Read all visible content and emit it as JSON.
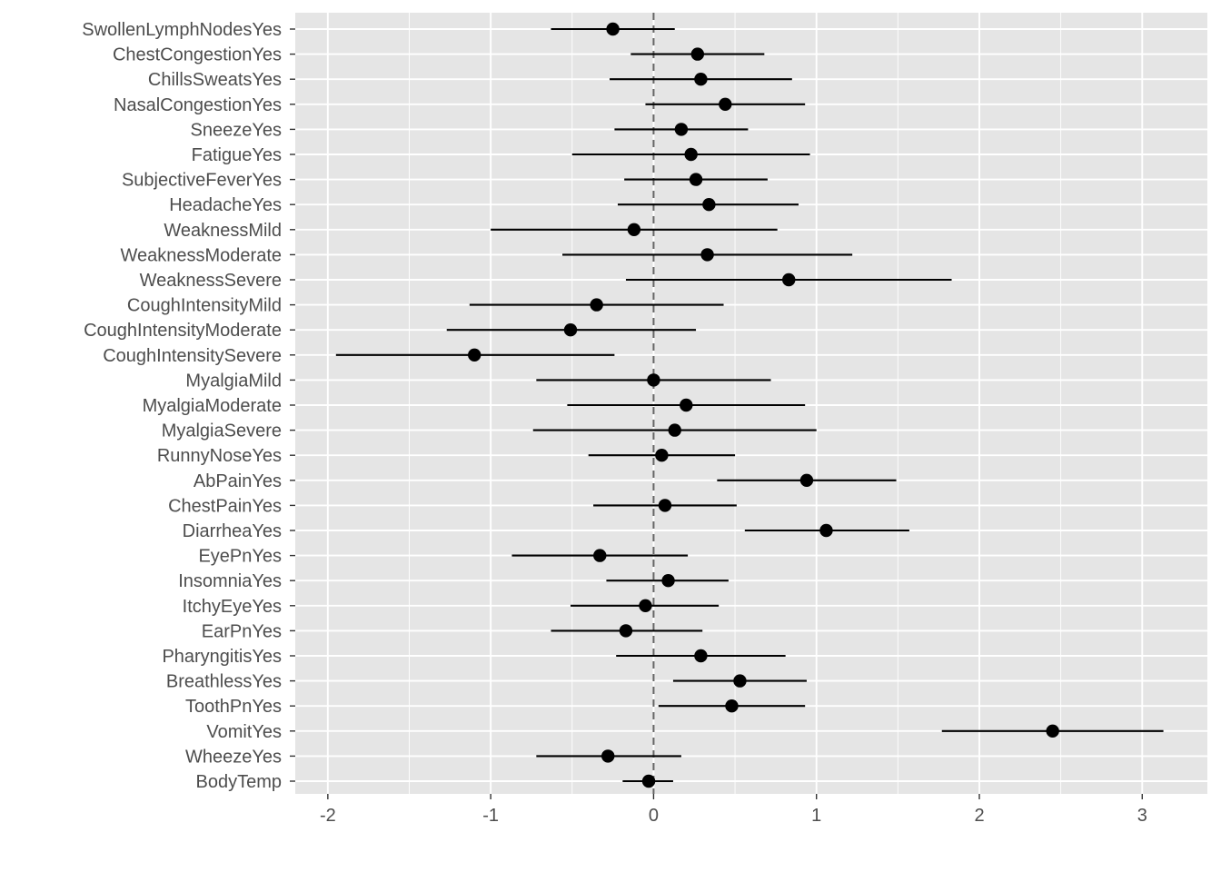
{
  "chart_data": {
    "type": "scatter",
    "subtype": "coefficient-plot-with-intervals",
    "title": "",
    "xlabel": "",
    "ylabel": "",
    "xlim": [
      -2.2,
      3.4
    ],
    "x_ticks": [
      -2,
      -1,
      0,
      1,
      2,
      3
    ],
    "x_tick_labels": [
      "-2",
      "-1",
      "0",
      "1",
      "2",
      "3"
    ],
    "reference_line_x": 0,
    "grid": true,
    "background": "#e5e5e5",
    "point_color": "#000000",
    "reference_line_color": "#666666",
    "terms": [
      {
        "term": "SwollenLymphNodesYes",
        "estimate": -0.25,
        "low": -0.63,
        "high": 0.13
      },
      {
        "term": "ChestCongestionYes",
        "estimate": 0.27,
        "low": -0.14,
        "high": 0.68
      },
      {
        "term": "ChillsSweatsYes",
        "estimate": 0.29,
        "low": -0.27,
        "high": 0.85
      },
      {
        "term": "NasalCongestionYes",
        "estimate": 0.44,
        "low": -0.05,
        "high": 0.93
      },
      {
        "term": "SneezeYes",
        "estimate": 0.17,
        "low": -0.24,
        "high": 0.58
      },
      {
        "term": "FatigueYes",
        "estimate": 0.23,
        "low": -0.5,
        "high": 0.96
      },
      {
        "term": "SubjectiveFeverYes",
        "estimate": 0.26,
        "low": -0.18,
        "high": 0.7
      },
      {
        "term": "HeadacheYes",
        "estimate": 0.34,
        "low": -0.22,
        "high": 0.89
      },
      {
        "term": "WeaknessMild",
        "estimate": -0.12,
        "low": -1.0,
        "high": 0.76
      },
      {
        "term": "WeaknessModerate",
        "estimate": 0.33,
        "low": -0.56,
        "high": 1.22
      },
      {
        "term": "WeaknessSevere",
        "estimate": 0.83,
        "low": -0.17,
        "high": 1.83
      },
      {
        "term": "CoughIntensityMild",
        "estimate": -0.35,
        "low": -1.13,
        "high": 0.43
      },
      {
        "term": "CoughIntensityModerate",
        "estimate": -0.51,
        "low": -1.27,
        "high": 0.26
      },
      {
        "term": "CoughIntensitySevere",
        "estimate": -1.1,
        "low": -1.95,
        "high": -0.24
      },
      {
        "term": "MyalgiaMild",
        "estimate": 0.0,
        "low": -0.72,
        "high": 0.72
      },
      {
        "term": "MyalgiaModerate",
        "estimate": 0.2,
        "low": -0.53,
        "high": 0.93
      },
      {
        "term": "MyalgiaSevere",
        "estimate": 0.13,
        "low": -0.74,
        "high": 1.0
      },
      {
        "term": "RunnyNoseYes",
        "estimate": 0.05,
        "low": -0.4,
        "high": 0.5
      },
      {
        "term": "AbPainYes",
        "estimate": 0.94,
        "low": 0.39,
        "high": 1.49
      },
      {
        "term": "ChestPainYes",
        "estimate": 0.07,
        "low": -0.37,
        "high": 0.51
      },
      {
        "term": "DiarrheaYes",
        "estimate": 1.06,
        "low": 0.56,
        "high": 1.57
      },
      {
        "term": "EyePnYes",
        "estimate": -0.33,
        "low": -0.87,
        "high": 0.21
      },
      {
        "term": "InsomniaYes",
        "estimate": 0.09,
        "low": -0.29,
        "high": 0.46
      },
      {
        "term": "ItchyEyeYes",
        "estimate": -0.05,
        "low": -0.51,
        "high": 0.4
      },
      {
        "term": "EarPnYes",
        "estimate": -0.17,
        "low": -0.63,
        "high": 0.3
      },
      {
        "term": "PharyngitisYes",
        "estimate": 0.29,
        "low": -0.23,
        "high": 0.81
      },
      {
        "term": "BreathlessYes",
        "estimate": 0.53,
        "low": 0.12,
        "high": 0.94
      },
      {
        "term": "ToothPnYes",
        "estimate": 0.48,
        "low": 0.03,
        "high": 0.93
      },
      {
        "term": "VomitYes",
        "estimate": 2.45,
        "low": 1.77,
        "high": 3.13
      },
      {
        "term": "WheezeYes",
        "estimate": -0.28,
        "low": -0.72,
        "high": 0.17
      },
      {
        "term": "BodyTemp",
        "estimate": -0.03,
        "low": -0.19,
        "high": 0.12
      }
    ]
  }
}
